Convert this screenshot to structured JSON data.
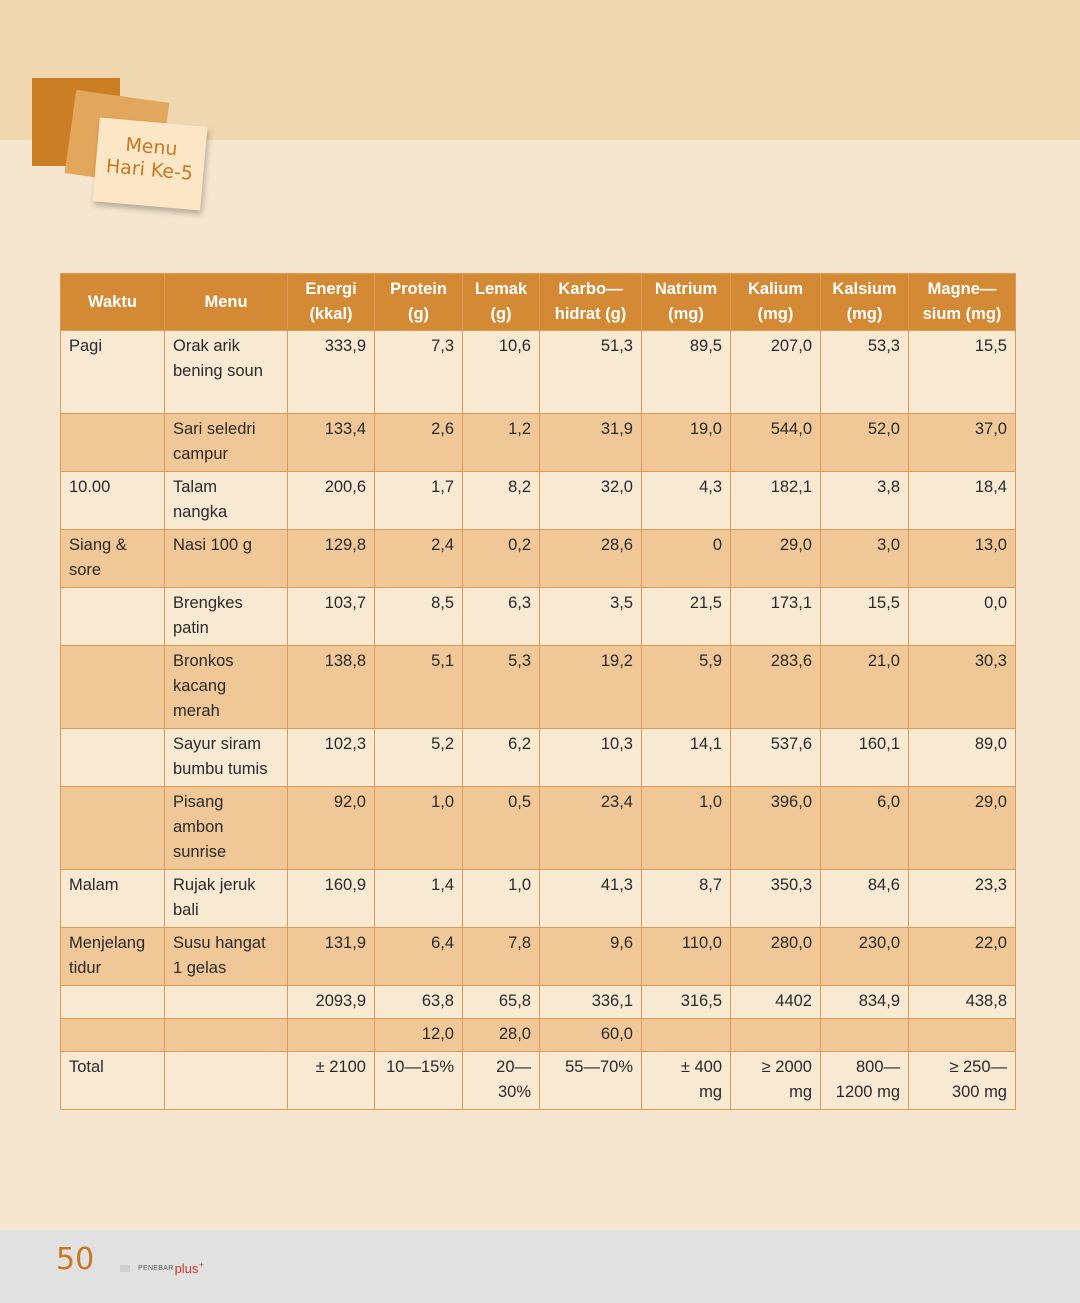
{
  "badge": {
    "line1": "Menu",
    "line2": "Hari Ke-5"
  },
  "table": {
    "headers": [
      [
        "Waktu"
      ],
      [
        "Menu"
      ],
      [
        "Energi",
        "(kkal)"
      ],
      [
        "Protein",
        "(g)"
      ],
      [
        "Lemak",
        "(g)"
      ],
      [
        "Karbo—",
        "hidrat (g)"
      ],
      [
        "Natrium",
        "(mg)"
      ],
      [
        "Kalium",
        "(mg)"
      ],
      [
        "Kalsium",
        "(mg)"
      ],
      [
        "Magne—",
        "sium (mg)"
      ]
    ],
    "rows": [
      {
        "shade": "light",
        "lines": 3,
        "waktu": [
          "Pagi"
        ],
        "menu": [
          "Orak arik",
          "bening soun"
        ],
        "values": [
          "333,9",
          "7,3",
          "10,6",
          "51,3",
          "89,5",
          "207,0",
          "53,3",
          "15,5"
        ]
      },
      {
        "shade": "dark",
        "lines": 2,
        "waktu": [],
        "menu": [
          "Sari seledri",
          "campur"
        ],
        "values": [
          "133,4",
          "2,6",
          "1,2",
          "31,9",
          "19,0",
          "544,0",
          "52,0",
          "37,0"
        ]
      },
      {
        "shade": "light",
        "lines": 2,
        "waktu": [
          "10.00"
        ],
        "menu": [
          "Talam",
          "nangka"
        ],
        "values": [
          "200,6",
          "1,7",
          "8,2",
          "32,0",
          "4,3",
          "182,1",
          "3,8",
          "18,4"
        ]
      },
      {
        "shade": "dark",
        "lines": 2,
        "waktu": [
          "Siang &",
          "sore"
        ],
        "menu": [
          "Nasi 100 g"
        ],
        "values": [
          "129,8",
          "2,4",
          "0,2",
          "28,6",
          "0",
          "29,0",
          "3,0",
          "13,0"
        ]
      },
      {
        "shade": "light",
        "lines": 2,
        "waktu": [],
        "menu": [
          "Brengkes",
          "patin"
        ],
        "values": [
          "103,7",
          "8,5",
          "6,3",
          "3,5",
          "21,5",
          "173,1",
          "15,5",
          "0,0"
        ]
      },
      {
        "shade": "dark",
        "lines": 3,
        "waktu": [],
        "menu": [
          "Bronkos",
          "kacang",
          "merah"
        ],
        "values": [
          "138,8",
          "5,1",
          "5,3",
          "19,2",
          "5,9",
          "283,6",
          "21,0",
          "30,3"
        ]
      },
      {
        "shade": "light",
        "lines": 2,
        "waktu": [],
        "menu": [
          "Sayur siram",
          "bumbu tumis"
        ],
        "values": [
          "102,3",
          "5,2",
          "6,2",
          "10,3",
          "14,1",
          "537,6",
          "160,1",
          "89,0"
        ]
      },
      {
        "shade": "dark",
        "lines": 3,
        "waktu": [],
        "menu": [
          "Pisang",
          "ambon",
          "sunrise"
        ],
        "values": [
          "92,0",
          "1,0",
          "0,5",
          "23,4",
          "1,0",
          "396,0",
          "6,0",
          "29,0"
        ]
      },
      {
        "shade": "light",
        "lines": 2,
        "waktu": [
          "Malam"
        ],
        "menu": [
          "Rujak jeruk",
          "bali"
        ],
        "values": [
          "160,9",
          "1,4",
          "1,0",
          "41,3",
          "8,7",
          "350,3",
          "84,6",
          "23,3"
        ]
      },
      {
        "shade": "dark",
        "lines": 2,
        "waktu": [
          "Menjelang",
          "tidur"
        ],
        "menu": [
          "Susu hangat",
          "1 gelas"
        ],
        "values": [
          "131,9",
          "6,4",
          "7,8",
          "9,6",
          "110,0",
          "280,0",
          "230,0",
          "22,0"
        ]
      },
      {
        "shade": "light",
        "lines": 1,
        "waktu": [],
        "menu": [],
        "values": [
          "2093,9",
          "63,8",
          "65,8",
          "336,1",
          "316,5",
          "4402",
          "834,9",
          "438,8"
        ]
      },
      {
        "shade": "dark",
        "lines": 1,
        "waktu": [],
        "menu": [],
        "values": [
          "",
          "12,0",
          "28,0",
          "60,0",
          "",
          "",
          "",
          ""
        ]
      },
      {
        "shade": "light",
        "lines": 2,
        "waktu": [
          "Total"
        ],
        "menu": [],
        "values": [
          "± 2100",
          "10—15%",
          "20—\n30%",
          "55—70%",
          "± 400\nmg",
          "≥ 2000\nmg",
          "800—\n1200 mg",
          "≥ 250—\n300 mg"
        ]
      }
    ]
  },
  "footer": {
    "page_number": "50",
    "publisher_prefix": "PENEBAR",
    "publisher_suffix": "plus",
    "publisher_mark": "+"
  }
}
